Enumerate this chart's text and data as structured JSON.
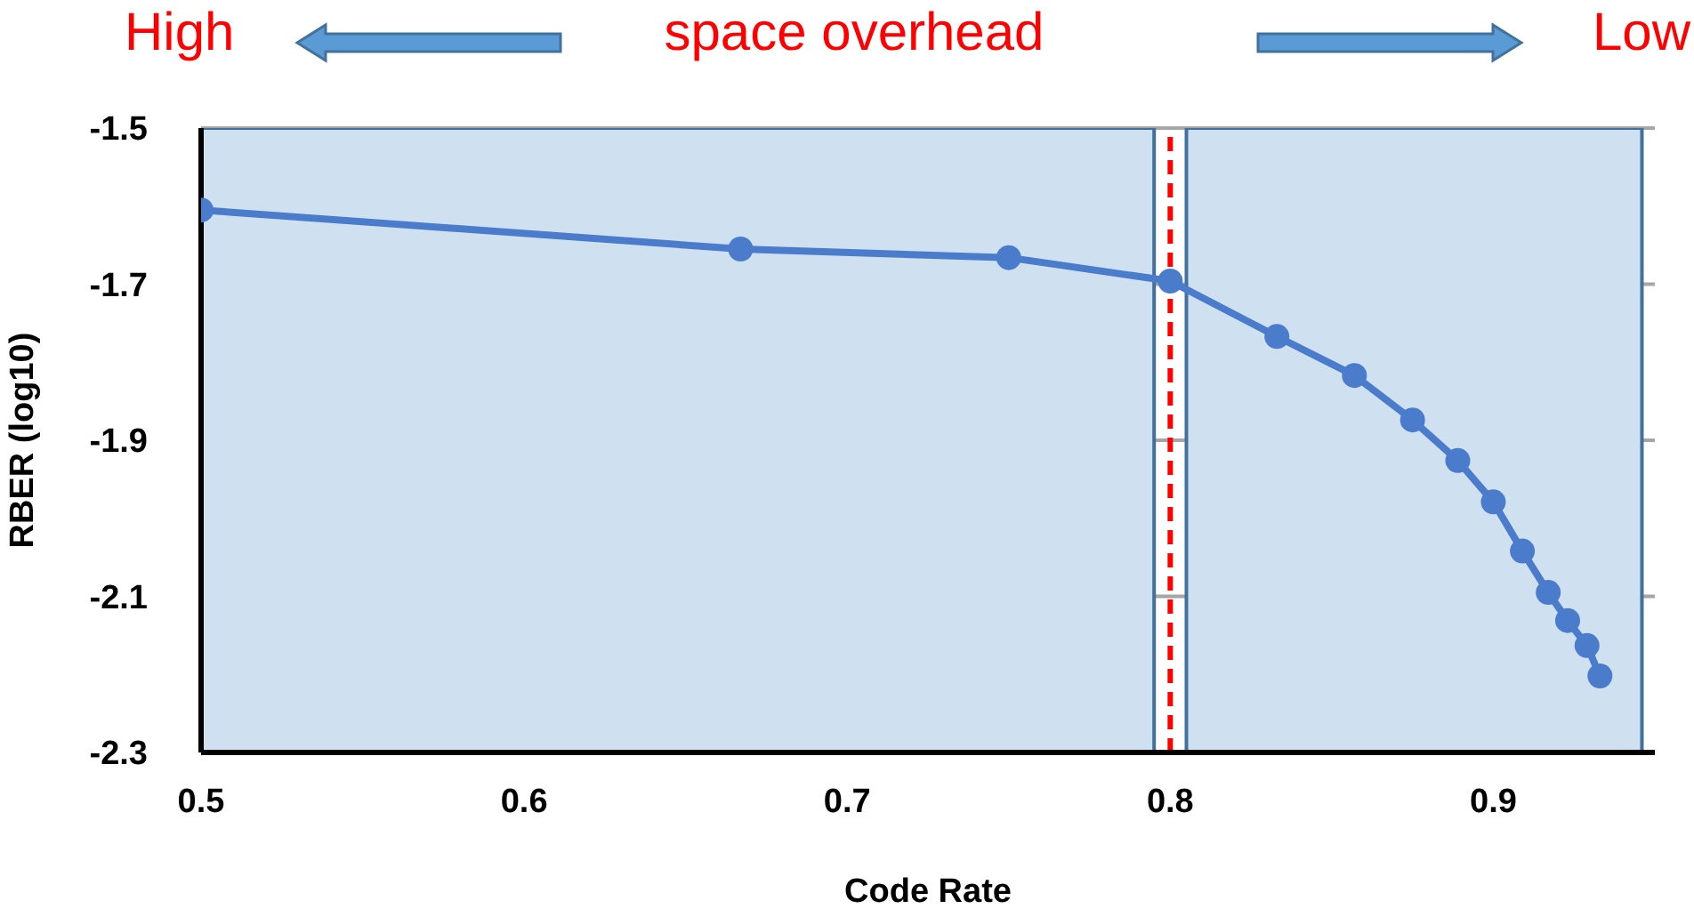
{
  "chart_data": {
    "type": "line",
    "xlabel": "Code Rate",
    "ylabel": "RBER (log10)",
    "annotations": [
      "High",
      "space overhead",
      "Low"
    ],
    "x": [
      0.5,
      0.667,
      0.75,
      0.8,
      0.833,
      0.857,
      0.875,
      0.889,
      0.9,
      0.909,
      0.917,
      0.923,
      0.929,
      0.933
    ],
    "series": [
      {
        "color": "#4a7ccb",
        "values": [
          -1.605,
          -1.655,
          -1.666,
          -1.696,
          -1.767,
          -1.817,
          -1.874,
          -1.926,
          -1.979,
          -2.042,
          -2.095,
          -2.131,
          -2.163,
          -2.202
        ]
      }
    ],
    "xlim": [
      0.5,
      0.95
    ],
    "xticks": [
      0.5,
      0.6,
      0.7,
      0.8,
      0.9
    ],
    "ylim": [
      -2.3,
      -1.5
    ],
    "yticks": [
      -2.3,
      -2.1,
      -1.9,
      -1.7,
      -1.5
    ],
    "grid": "y",
    "marker": "circle",
    "line_style": "solid",
    "ref_lines": [
      {
        "axis": "x",
        "value": 0.8,
        "color": "#ff0000",
        "line_style": "dashed"
      }
    ],
    "bands": [
      {
        "axis": "x",
        "from": 0.5,
        "to": 0.795,
        "color": "#cfe0f1"
      },
      {
        "axis": "x",
        "from": 0.805,
        "to": 0.946,
        "color": "#cfe0f1"
      }
    ]
  }
}
